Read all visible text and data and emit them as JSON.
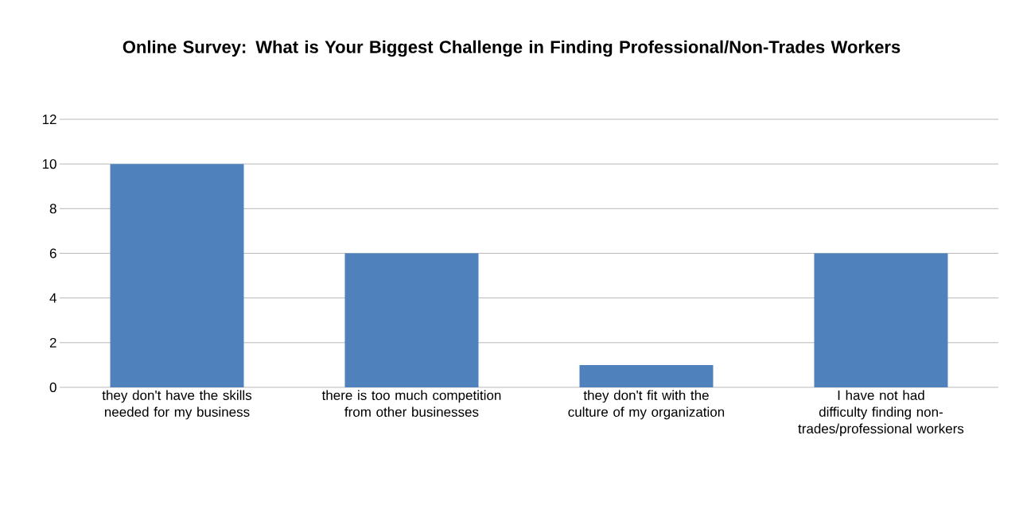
{
  "chart_data": {
    "type": "bar",
    "title": "Online Survey:  What is Your Biggest Challenge in Finding Professional/Non-Trades Workers",
    "categories": [
      "they don't have the skills needed for my business",
      "there is too much competition from other businesses",
      "they don't fit with the culture of my organization",
      "I have not had difficulty finding non-trades/professional workers"
    ],
    "values": [
      10,
      6,
      1,
      6
    ],
    "color": "#4f81bd",
    "ylim": [
      0,
      12
    ],
    "yticks": [
      0,
      2,
      4,
      6,
      8,
      10,
      12
    ],
    "grid": "y"
  }
}
